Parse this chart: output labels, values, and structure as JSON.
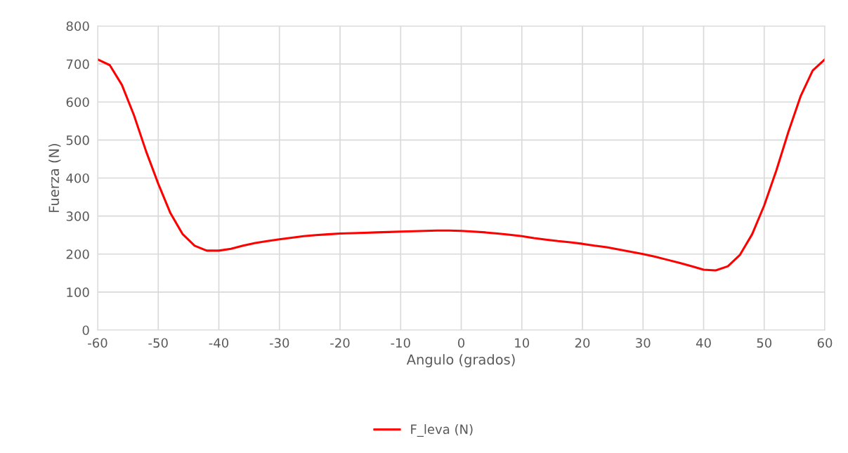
{
  "chart_data": {
    "type": "line",
    "xlabel": "Angulo (grados)",
    "ylabel": "Fuerza (N)",
    "x": [
      -60,
      -58,
      -56,
      -54,
      -52,
      -50,
      -48,
      -46,
      -44,
      -42,
      -40,
      -38,
      -36,
      -34,
      -32,
      -30,
      -28,
      -26,
      -24,
      -22,
      -20,
      -18,
      -16,
      -14,
      -12,
      -10,
      -8,
      -6,
      -4,
      -2,
      0,
      2,
      4,
      6,
      8,
      10,
      12,
      14,
      16,
      18,
      20,
      22,
      24,
      26,
      28,
      30,
      32,
      34,
      36,
      38,
      40,
      42,
      44,
      46,
      48,
      50,
      52,
      54,
      56,
      58,
      60
    ],
    "series": [
      {
        "name": "F_leva (N)",
        "color": "#ff0000",
        "values": [
          712,
          697,
          645,
          565,
          470,
          385,
          308,
          253,
          222,
          209,
          209,
          214,
          222,
          229,
          234,
          239,
          243,
          247,
          250,
          252,
          254,
          255,
          256,
          257,
          258,
          259,
          260,
          261,
          262,
          262,
          261,
          259,
          257,
          254,
          251,
          247,
          242,
          238,
          234,
          231,
          227,
          222,
          218,
          212,
          206,
          200,
          193,
          185,
          177,
          168,
          159,
          157,
          168,
          198,
          252,
          328,
          420,
          522,
          615,
          683,
          712
        ]
      }
    ],
    "xlim": [
      -60,
      60
    ],
    "xticks": [
      -60,
      -50,
      -40,
      -30,
      -20,
      -10,
      0,
      10,
      20,
      30,
      40,
      50,
      60
    ],
    "ylim": [
      0,
      800
    ],
    "yticks": [
      0,
      100,
      200,
      300,
      400,
      500,
      600,
      700,
      800
    ],
    "grid": true,
    "legend": "bottom",
    "marker": "none",
    "line_style": "solid"
  }
}
